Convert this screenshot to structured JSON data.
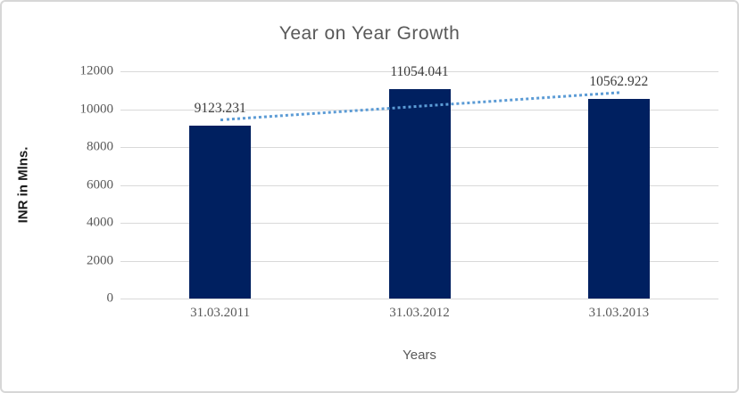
{
  "chart_data": {
    "type": "bar",
    "title": "Year on Year Growth",
    "xlabel": "Years",
    "ylabel": "INR in Mlns.",
    "categories": [
      "31.03.2011",
      "31.03.2012",
      "31.03.2013"
    ],
    "series": [
      {
        "name": "INR in Mlns.",
        "values": [
          9123.231,
          11054.041,
          10562.922
        ],
        "data_labels": [
          "9123.231",
          "11054.041",
          "10562.922"
        ],
        "color": "#002060"
      }
    ],
    "ylim": [
      0,
      12000
    ],
    "yticks": [
      0,
      2000,
      4000,
      6000,
      8000,
      10000,
      12000
    ],
    "grid": true,
    "legend": "none",
    "trendline": {
      "type": "linear",
      "style": "dotted",
      "color": "#5b9bd5"
    },
    "colors": {
      "bar": "#002060",
      "gridline": "#d9d9d9",
      "title_text": "#595959",
      "tick_text": "#595959",
      "data_label_text": "#3b3b3b",
      "axis_title_text": "#1a1a1a",
      "chart_border": "#d7d7d7",
      "background": "#ffffff"
    }
  }
}
